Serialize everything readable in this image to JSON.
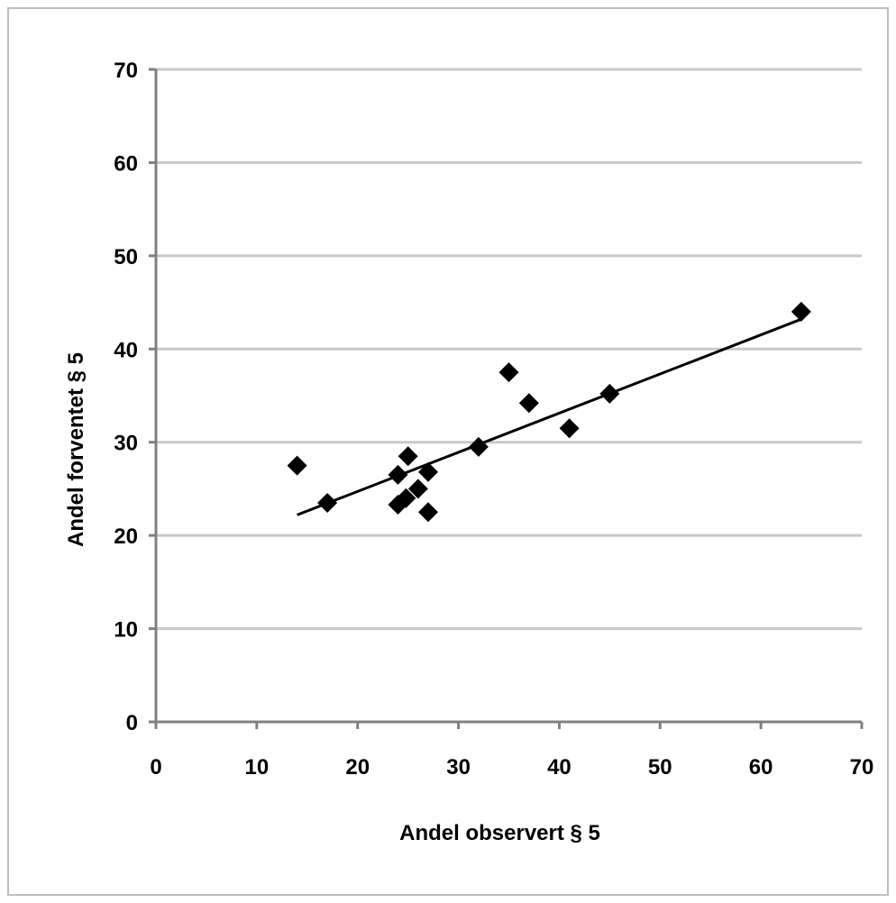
{
  "chart_data": {
    "type": "scatter",
    "title": "",
    "xlabel": "Andel observert § 5",
    "ylabel": "Andel forventet § 5",
    "xlim": [
      0,
      70
    ],
    "ylim": [
      0,
      70
    ],
    "x_ticks": [
      0,
      10,
      20,
      30,
      40,
      50,
      60,
      70
    ],
    "y_ticks": [
      0,
      10,
      20,
      30,
      40,
      50,
      60,
      70
    ],
    "grid": "horizontal",
    "legend": "none",
    "series": [
      {
        "marker": "diamond",
        "points": [
          {
            "x": 14,
            "y": 27.5
          },
          {
            "x": 17,
            "y": 23.5
          },
          {
            "x": 24,
            "y": 23.3
          },
          {
            "x": 24,
            "y": 26.5
          },
          {
            "x": 24.8,
            "y": 24.0
          },
          {
            "x": 25,
            "y": 28.5
          },
          {
            "x": 26,
            "y": 25.0
          },
          {
            "x": 27,
            "y": 26.8
          },
          {
            "x": 27,
            "y": 22.5
          },
          {
            "x": 32,
            "y": 29.5
          },
          {
            "x": 35,
            "y": 37.5
          },
          {
            "x": 37,
            "y": 34.2
          },
          {
            "x": 41,
            "y": 31.5
          },
          {
            "x": 45,
            "y": 35.2
          },
          {
            "x": 64,
            "y": 44.0
          }
        ]
      }
    ],
    "trendline": {
      "type": "linear",
      "x_start": 14,
      "x_end": 64,
      "y_start": 22.2,
      "y_end": 43.2
    },
    "colors": {
      "marker": "#000000",
      "gridline": "#c8c8c8",
      "axis": "#808080",
      "border": "#bdbdbd"
    }
  }
}
